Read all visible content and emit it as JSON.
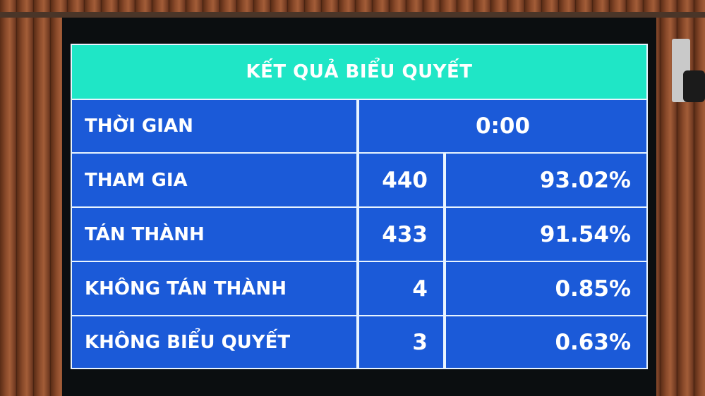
{
  "title": "KẾT QUẢ BIỂU QUYẾT",
  "time": {
    "label": "THỜI GIAN",
    "value": "0:00"
  },
  "rows": [
    {
      "label": "THAM GIA",
      "count": "440",
      "percent": "93.02%"
    },
    {
      "label": "TÁN THÀNH",
      "count": "433",
      "percent": "91.54%"
    },
    {
      "label": "KHÔNG TÁN THÀNH",
      "count": "4",
      "percent": "0.85%"
    },
    {
      "label": "KHÔNG BIỂU QUYẾT",
      "count": "3",
      "percent": "0.63%"
    }
  ],
  "colors": {
    "header": "#1fe6c6",
    "cells": "#1b5ad8",
    "text": "#ffffff",
    "wood": "#8a4a2a"
  }
}
